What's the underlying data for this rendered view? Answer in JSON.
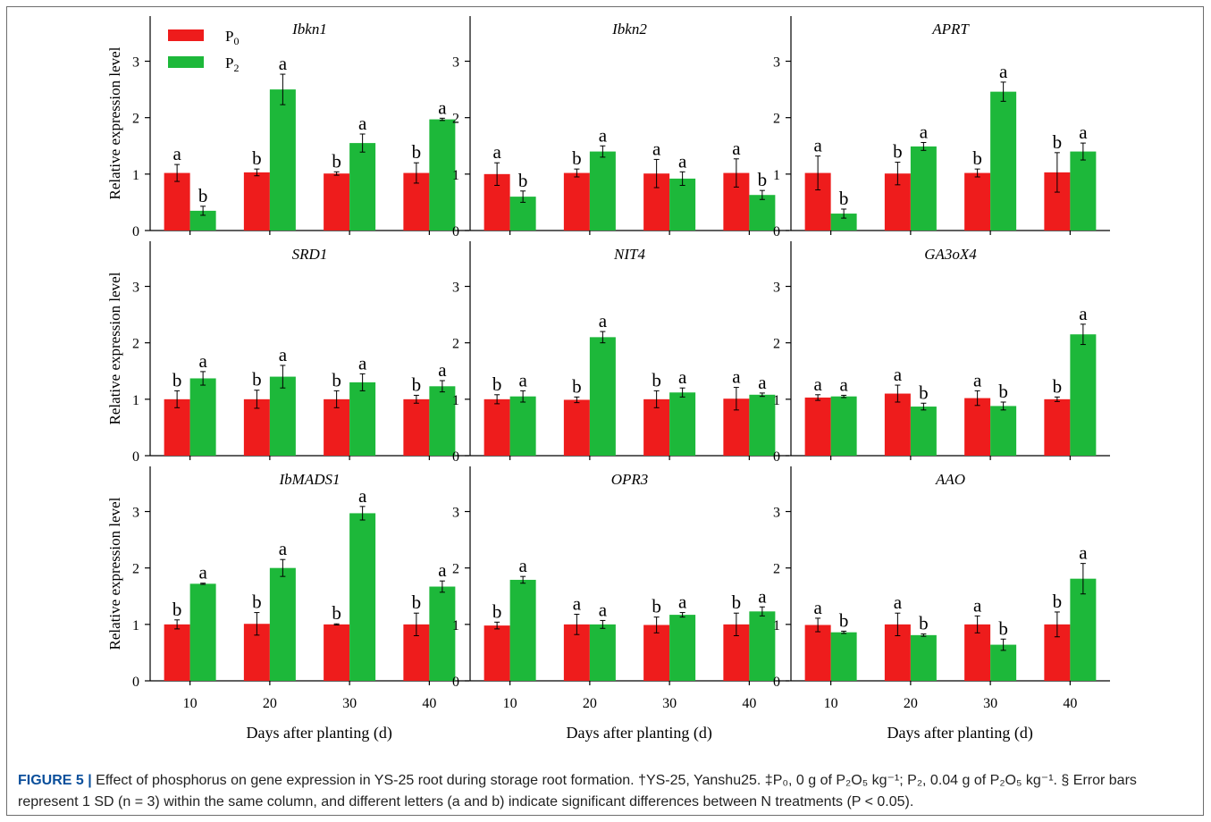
{
  "caption": {
    "label": "FIGURE 5 |",
    "text": " Effect of phosphorus on gene expression in YS-25 root during storage root formation. †YS-25, Yanshu25. ‡P₀, 0 g of P₂O₅ kg⁻¹; P₂, 0.04 g of P₂O₅ kg⁻¹. § Error bars represent 1 SD (n = 3) within the same column, and different letters (a and b) indicate significant differences between N treatments (P < 0.05)."
  },
  "colors": {
    "P0": "#ee1c1c",
    "P2": "#1db83a"
  },
  "chart_data": [
    {
      "type": "bar",
      "title": "Ibkn1",
      "ylabel": "Relative expression level",
      "xlabel": "",
      "ylim": [
        0,
        3.8
      ],
      "yticks": [
        0,
        1,
        2,
        3
      ],
      "categories": [
        "10",
        "20",
        "30",
        "40"
      ],
      "series": [
        {
          "name": "P0",
          "values": [
            1.02,
            1.03,
            1.01,
            1.02
          ],
          "errors": [
            0.15,
            0.06,
            0.03,
            0.18
          ],
          "letters": [
            "a",
            "b",
            "b",
            "b"
          ]
        },
        {
          "name": "P2",
          "values": [
            0.35,
            2.5,
            1.55,
            1.97
          ],
          "errors": [
            0.08,
            0.27,
            0.16,
            0.02
          ],
          "letters": [
            "b",
            "a",
            "a",
            "a"
          ]
        }
      ]
    },
    {
      "type": "bar",
      "title": "Ibkn2",
      "ylabel": "",
      "xlabel": "",
      "ylim": [
        0,
        3.8
      ],
      "yticks": [
        0,
        1,
        2,
        3
      ],
      "categories": [
        "10",
        "20",
        "30",
        "40"
      ],
      "series": [
        {
          "name": "P0",
          "values": [
            1.0,
            1.02,
            1.01,
            1.02
          ],
          "errors": [
            0.2,
            0.07,
            0.25,
            0.25
          ],
          "letters": [
            "a",
            "b",
            "a",
            "a"
          ]
        },
        {
          "name": "P2",
          "values": [
            0.6,
            1.4,
            0.92,
            0.63
          ],
          "errors": [
            0.1,
            0.1,
            0.12,
            0.08
          ],
          "letters": [
            "b",
            "a",
            "a",
            "b"
          ]
        }
      ]
    },
    {
      "type": "bar",
      "title": "APRT",
      "ylabel": "",
      "xlabel": "",
      "ylim": [
        0,
        3.8
      ],
      "yticks": [
        0,
        1,
        2,
        3
      ],
      "categories": [
        "10",
        "20",
        "30",
        "40"
      ],
      "series": [
        {
          "name": "P0",
          "values": [
            1.02,
            1.01,
            1.02,
            1.03
          ],
          "errors": [
            0.3,
            0.2,
            0.07,
            0.35
          ],
          "letters": [
            "a",
            "b",
            "b",
            "b"
          ]
        },
        {
          "name": "P2",
          "values": [
            0.3,
            1.49,
            2.46,
            1.4
          ],
          "errors": [
            0.08,
            0.07,
            0.17,
            0.15
          ],
          "letters": [
            "b",
            "a",
            "a",
            "a"
          ]
        }
      ]
    },
    {
      "type": "bar",
      "title": "SRD1",
      "ylabel": "Relative expression level",
      "xlabel": "",
      "ylim": [
        0,
        3.8
      ],
      "yticks": [
        0,
        1,
        2,
        3
      ],
      "categories": [
        "10",
        "20",
        "30",
        "40"
      ],
      "series": [
        {
          "name": "P0",
          "values": [
            1.0,
            1.0,
            1.0,
            1.0
          ],
          "errors": [
            0.15,
            0.16,
            0.15,
            0.07
          ],
          "letters": [
            "b",
            "b",
            "b",
            "b"
          ]
        },
        {
          "name": "P2",
          "values": [
            1.37,
            1.4,
            1.3,
            1.23
          ],
          "errors": [
            0.12,
            0.2,
            0.15,
            0.1
          ],
          "letters": [
            "a",
            "a",
            "a",
            "a"
          ]
        }
      ]
    },
    {
      "type": "bar",
      "title": "NIT4",
      "ylabel": "",
      "xlabel": "",
      "ylim": [
        0,
        3.8
      ],
      "yticks": [
        0,
        1,
        2,
        3
      ],
      "categories": [
        "10",
        "20",
        "30",
        "40"
      ],
      "series": [
        {
          "name": "P0",
          "values": [
            1.0,
            0.99,
            1.0,
            1.01
          ],
          "errors": [
            0.08,
            0.05,
            0.15,
            0.2
          ],
          "letters": [
            "b",
            "b",
            "b",
            "a"
          ]
        },
        {
          "name": "P2",
          "values": [
            1.05,
            2.1,
            1.12,
            1.08
          ],
          "errors": [
            0.1,
            0.1,
            0.08,
            0.03
          ],
          "letters": [
            "a",
            "a",
            "a",
            "a"
          ]
        }
      ]
    },
    {
      "type": "bar",
      "title": "GA3oX4",
      "ylabel": "",
      "xlabel": "",
      "ylim": [
        0,
        3.8
      ],
      "yticks": [
        0,
        1,
        2,
        3
      ],
      "categories": [
        "10",
        "20",
        "30",
        "40"
      ],
      "series": [
        {
          "name": "P0",
          "values": [
            1.03,
            1.1,
            1.02,
            1.0
          ],
          "errors": [
            0.05,
            0.15,
            0.13,
            0.04
          ],
          "letters": [
            "a",
            "a",
            "a",
            "b"
          ]
        },
        {
          "name": "P2",
          "values": [
            1.05,
            0.87,
            0.88,
            2.15
          ],
          "errors": [
            0.02,
            0.06,
            0.07,
            0.18
          ],
          "letters": [
            "a",
            "b",
            "b",
            "a"
          ]
        }
      ]
    },
    {
      "type": "bar",
      "title": "IbMADS1",
      "ylabel": "Relative expression level",
      "xlabel": "Days after planting (d)",
      "ylim": [
        0,
        3.8
      ],
      "yticks": [
        0,
        1,
        2,
        3
      ],
      "categories": [
        "10",
        "20",
        "30",
        "40"
      ],
      "series": [
        {
          "name": "P0",
          "values": [
            1.0,
            1.01,
            1.0,
            1.0
          ],
          "errors": [
            0.08,
            0.2,
            0.01,
            0.2
          ],
          "letters": [
            "b",
            "b",
            "b",
            "b"
          ]
        },
        {
          "name": "P2",
          "values": [
            1.72,
            2.0,
            2.97,
            1.67
          ],
          "errors": [
            0.01,
            0.15,
            0.12,
            0.1
          ],
          "letters": [
            "a",
            "a",
            "a",
            "a"
          ]
        }
      ]
    },
    {
      "type": "bar",
      "title": "OPR3",
      "ylabel": "",
      "xlabel": "Days after planting (d)",
      "ylim": [
        0,
        3.8
      ],
      "yticks": [
        0,
        1,
        2,
        3
      ],
      "categories": [
        "10",
        "20",
        "30",
        "40"
      ],
      "series": [
        {
          "name": "P0",
          "values": [
            0.98,
            1.0,
            0.99,
            1.0
          ],
          "errors": [
            0.06,
            0.18,
            0.14,
            0.2
          ],
          "letters": [
            "b",
            "a",
            "b",
            "b"
          ]
        },
        {
          "name": "P2",
          "values": [
            1.79,
            1.0,
            1.17,
            1.23
          ],
          "errors": [
            0.06,
            0.07,
            0.04,
            0.08
          ],
          "letters": [
            "a",
            "a",
            "a",
            "a"
          ]
        }
      ]
    },
    {
      "type": "bar",
      "title": "AAO",
      "ylabel": "",
      "xlabel": "Days after planting (d)",
      "ylim": [
        0,
        3.8
      ],
      "yticks": [
        0,
        1,
        2,
        3
      ],
      "categories": [
        "10",
        "20",
        "30",
        "40"
      ],
      "series": [
        {
          "name": "P0",
          "values": [
            0.99,
            1.0,
            1.0,
            1.0
          ],
          "errors": [
            0.12,
            0.2,
            0.15,
            0.22
          ],
          "letters": [
            "a",
            "a",
            "a",
            "b"
          ]
        },
        {
          "name": "P2",
          "values": [
            0.86,
            0.81,
            0.64,
            1.81
          ],
          "errors": [
            0.02,
            0.02,
            0.1,
            0.27
          ],
          "letters": [
            "b",
            "b",
            "b",
            "a"
          ]
        }
      ]
    }
  ],
  "legend": {
    "items": [
      {
        "key": "P0",
        "label": "P",
        "sub": "0"
      },
      {
        "key": "P2",
        "label": "P",
        "sub": "2"
      }
    ]
  }
}
